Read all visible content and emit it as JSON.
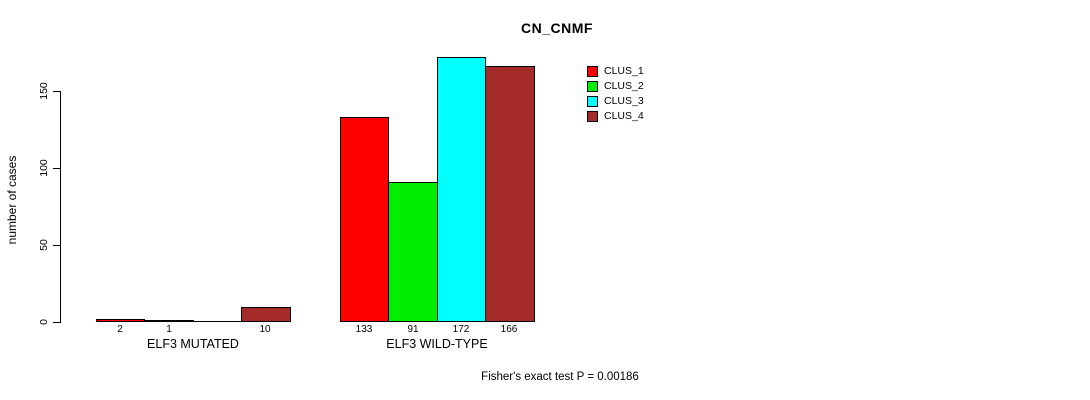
{
  "chart_data": {
    "type": "bar",
    "title": "CN_CNMF",
    "ylabel": "number of cases",
    "xlabel": "",
    "categories": [
      "ELF3 MUTATED",
      "ELF3 WILD-TYPE"
    ],
    "series": [
      {
        "name": "CLUS_1",
        "color": "#ff0000",
        "values": [
          2,
          133
        ]
      },
      {
        "name": "CLUS_2",
        "color": "#00ee00",
        "values": [
          1,
          91
        ]
      },
      {
        "name": "CLUS_3",
        "color": "#00ffff",
        "values": [
          0,
          172
        ]
      },
      {
        "name": "CLUS_4",
        "color": "#a52a2a",
        "values": [
          10,
          166
        ]
      }
    ],
    "bar_value_labels": [
      [
        "2",
        "1",
        "",
        "10"
      ],
      [
        "133",
        "91",
        "172",
        "166"
      ]
    ],
    "yticks": [
      0,
      50,
      100,
      150
    ],
    "ylim": [
      0,
      172
    ],
    "grid": false,
    "legend_position": "upper-right-inside",
    "annotation": "Fisher's exact test P = 0.00186"
  }
}
